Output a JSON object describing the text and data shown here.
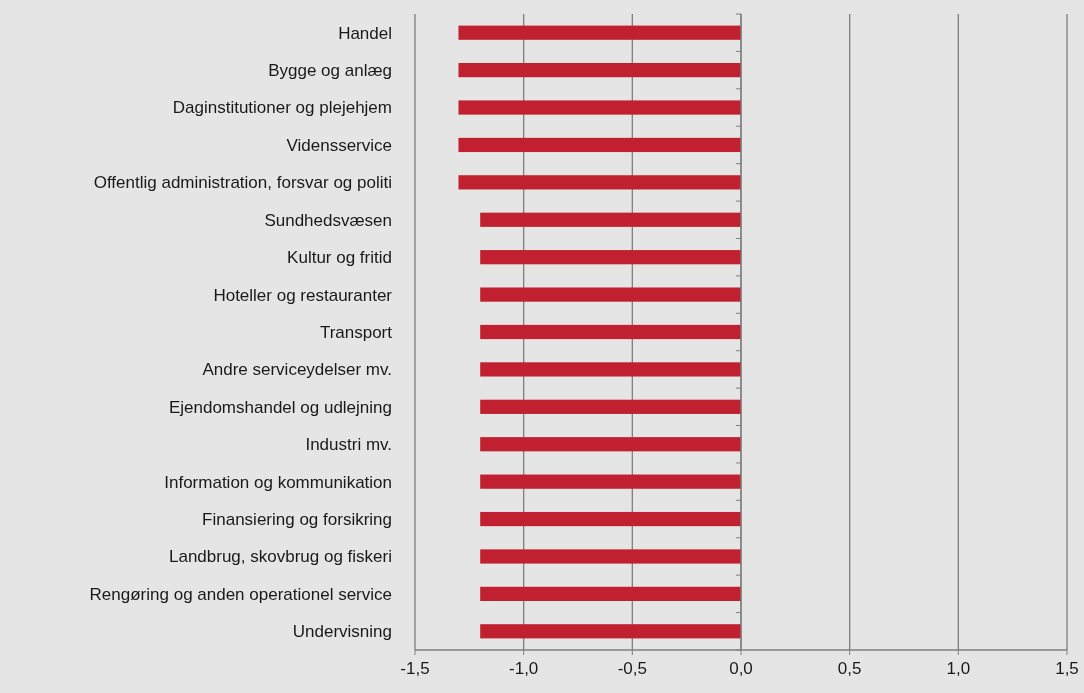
{
  "chart_data": {
    "type": "bar",
    "orientation": "horizontal",
    "categories": [
      "Handel",
      "Bygge og anlæg",
      "Daginstitutioner og plejehjem",
      "Vidensservice",
      "Offentlig administration, forsvar og politi",
      "Sundhedsvæsen",
      "Kultur og fritid",
      "Hoteller og restauranter",
      "Transport",
      "Andre serviceydelser mv.",
      "Ejendomshandel og udlejning",
      "Industri mv.",
      "Information og kommunikation",
      "Finansiering og forsikring",
      "Landbrug, skovbrug og fiskeri",
      "Rengøring og anden operationel service",
      "Undervisning"
    ],
    "values": [
      -1.3,
      -1.3,
      -1.3,
      -1.3,
      -1.3,
      -1.2,
      -1.2,
      -1.2,
      -1.2,
      -1.2,
      -1.2,
      -1.2,
      -1.2,
      -1.2,
      -1.2,
      -1.2,
      -1.2
    ],
    "color": "#c0202f",
    "xlim": [
      -1.5,
      1.5
    ],
    "xticks": [
      {
        "value": -1.5,
        "label": "-1,5"
      },
      {
        "value": -1.0,
        "label": "-1,0"
      },
      {
        "value": -0.5,
        "label": "-0,5"
      },
      {
        "value": 0,
        "label": "0,0"
      },
      {
        "value": 0.5,
        "label": "0,5"
      },
      {
        "value": 1.0,
        "label": "1,0"
      },
      {
        "value": 1.5,
        "label": "1,5"
      }
    ],
    "grid": "x"
  }
}
